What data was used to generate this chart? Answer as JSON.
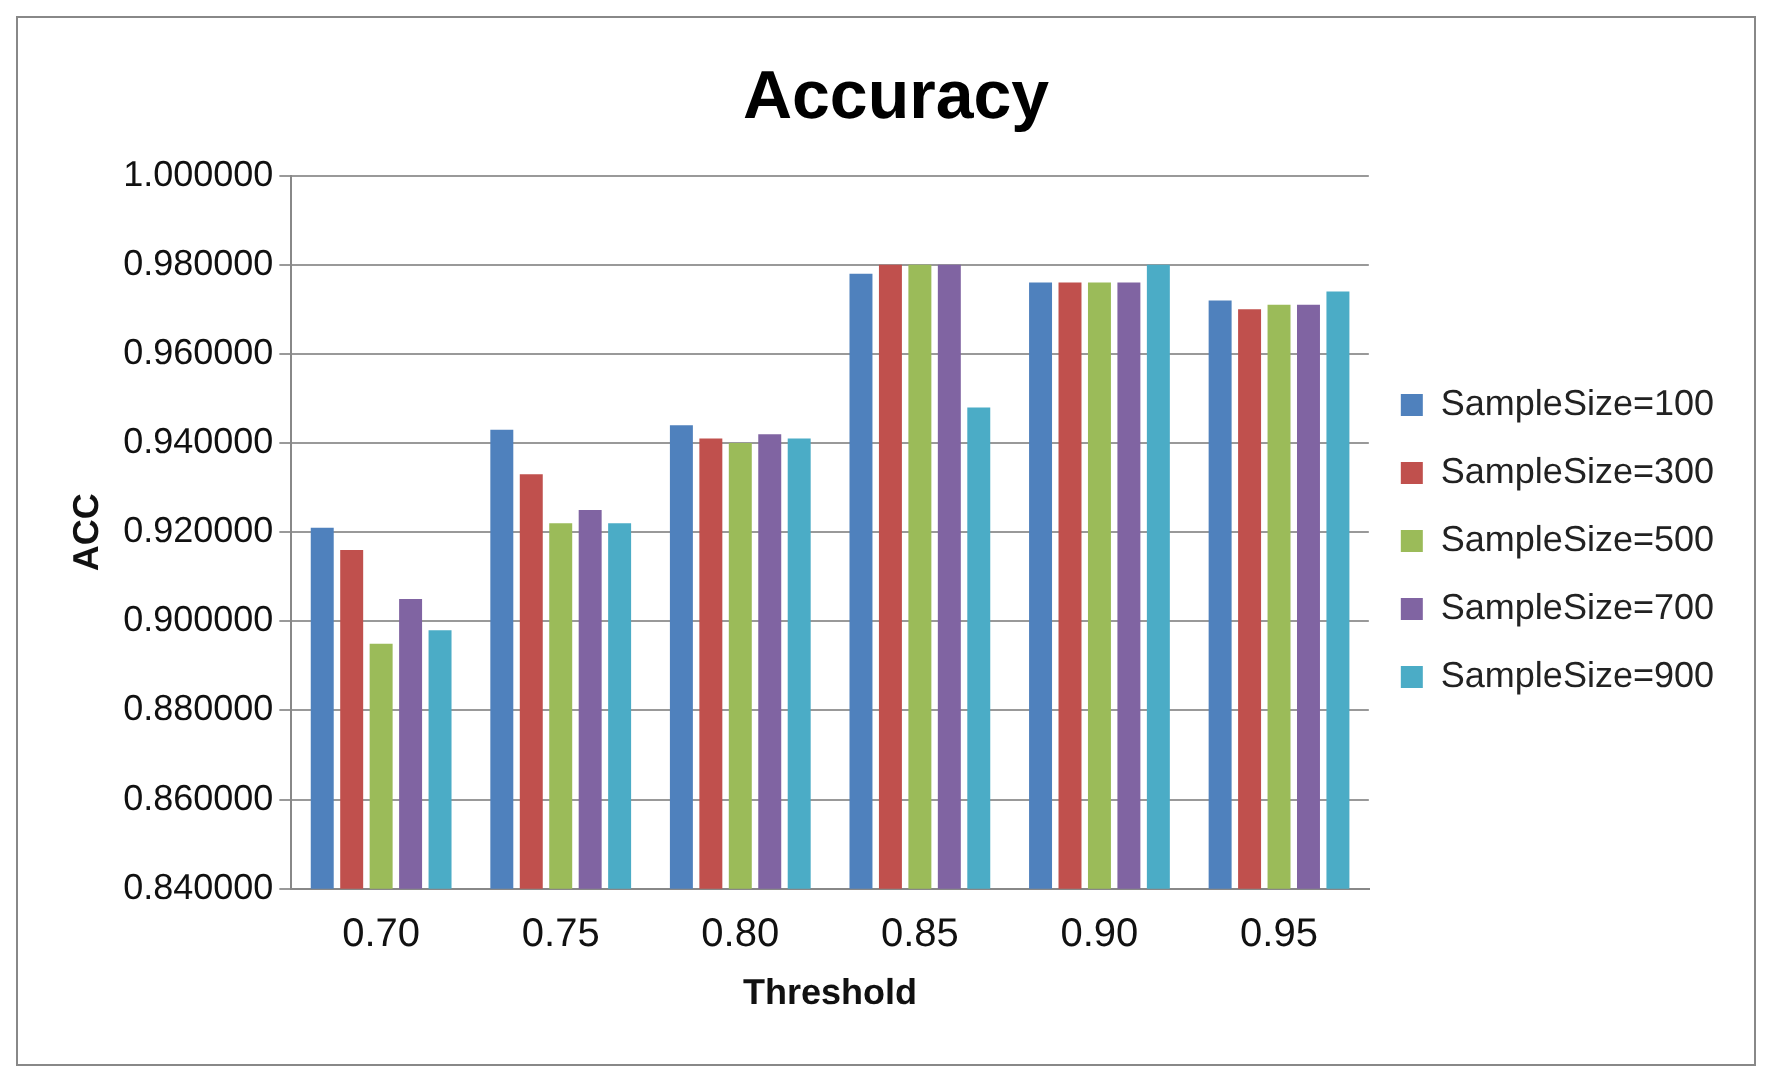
{
  "chart_data": {
    "type": "bar",
    "title": "Accuracy",
    "xlabel": "Threshold",
    "ylabel": "ACC",
    "categories": [
      "0.70",
      "0.75",
      "0.80",
      "0.85",
      "0.90",
      "0.95"
    ],
    "series": [
      {
        "name": "SampleSize=100",
        "color": "#4f81bd",
        "values": [
          0.921,
          0.943,
          0.944,
          0.978,
          0.976,
          0.972
        ]
      },
      {
        "name": "SampleSize=300",
        "color": "#c0504d",
        "values": [
          0.916,
          0.933,
          0.941,
          0.98,
          0.976,
          0.97
        ]
      },
      {
        "name": "SampleSize=500",
        "color": "#9bbb59",
        "values": [
          0.895,
          0.922,
          0.94,
          0.98,
          0.976,
          0.971
        ]
      },
      {
        "name": "SampleSize=700",
        "color": "#8064a2",
        "values": [
          0.905,
          0.925,
          0.942,
          0.98,
          0.976,
          0.971
        ]
      },
      {
        "name": "SampleSize=900",
        "color": "#4bacc6",
        "values": [
          0.898,
          0.922,
          0.941,
          0.948,
          0.98,
          0.974
        ]
      }
    ],
    "ylim": [
      0.84,
      1.0
    ],
    "yticks": [
      {
        "value": 0.84,
        "label": "0.840000"
      },
      {
        "value": 0.86,
        "label": "0.860000"
      },
      {
        "value": 0.88,
        "label": "0.880000"
      },
      {
        "value": 0.9,
        "label": "0.900000"
      },
      {
        "value": 0.92,
        "label": "0.920000"
      },
      {
        "value": 0.94,
        "label": "0.940000"
      },
      {
        "value": 0.96,
        "label": "0.960000"
      },
      {
        "value": 0.98,
        "label": "0.980000"
      },
      {
        "value": 1.0,
        "label": "1.000000"
      }
    ],
    "grid": "y",
    "legend": "right"
  }
}
